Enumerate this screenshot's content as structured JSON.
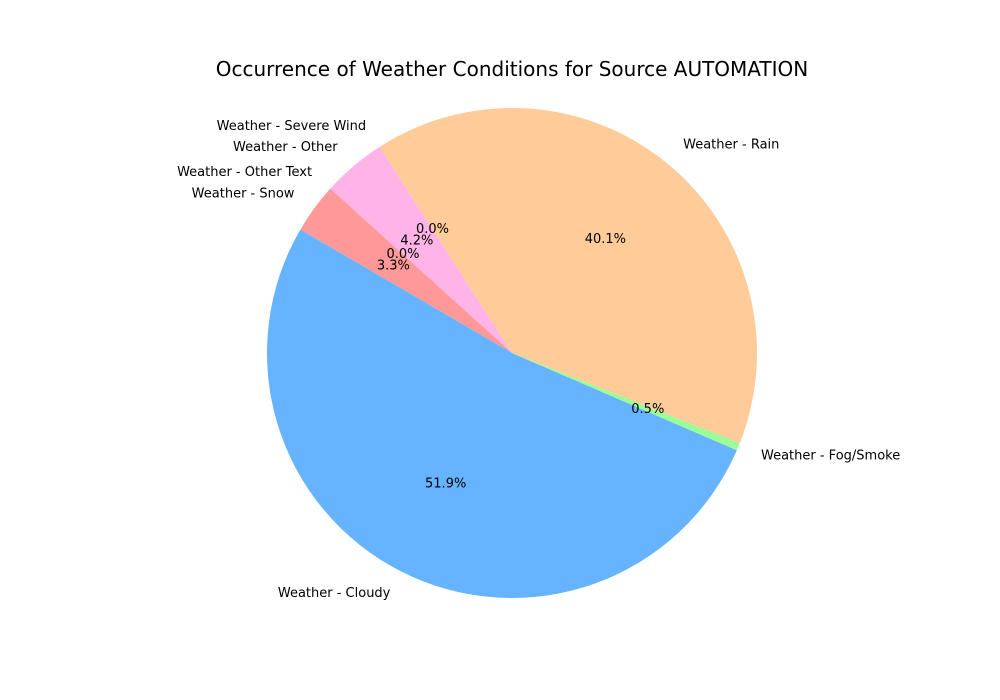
{
  "chart_data": {
    "type": "pie",
    "title": "Occurrence of Weather Conditions for Source AUTOMATION",
    "slices": [
      {
        "label": "Weather - Rain",
        "value": 40.1,
        "pct_label": "40.1%",
        "color": "#ffcc99"
      },
      {
        "label": "Weather - Severe Wind",
        "value": 0.0,
        "pct_label": "0.0%",
        "color": "#c2c2f0"
      },
      {
        "label": "Weather - Other",
        "value": 4.2,
        "pct_label": "4.2%",
        "color": "#ffb3e6"
      },
      {
        "label": "Weather - Other Text",
        "value": 0.0,
        "pct_label": "0.0%",
        "color": "#c4e17f"
      },
      {
        "label": "Weather - Snow",
        "value": 3.3,
        "pct_label": "3.3%",
        "color": "#ff9999"
      },
      {
        "label": "Weather - Cloudy",
        "value": 51.9,
        "pct_label": "51.9%",
        "color": "#66b3ff"
      },
      {
        "label": "Weather - Fog/Smoke",
        "value": 0.5,
        "pct_label": "0.5%",
        "color": "#99ff99"
      }
    ]
  }
}
